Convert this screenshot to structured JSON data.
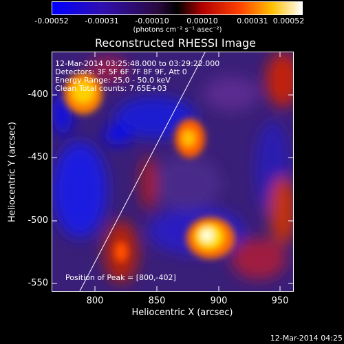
{
  "colorbar": {
    "ticks": [
      "-0.00052",
      "-0.00031",
      "-0.00010",
      "0.00010",
      "0.00031",
      "0.00052"
    ],
    "units": "(photons cm⁻² s⁻¹ asec⁻²)"
  },
  "title": "Reconstructed RHESSI Image",
  "annotations": {
    "time_range": "12-Mar-2014 03:25:48.000 to 03:29:22.000",
    "detectors": "Detectors: 3F 5F 6F 7F 8F 9F, Att 0",
    "energy_range": "Energy Range: 25.0 - 50.0 keV",
    "clean": "Clean    Total counts: 7.65E+03",
    "peak": "Position of Peak = [800,-402]"
  },
  "axes": {
    "xlabel": "Heliocentric X (arcsec)",
    "ylabel": "Heliocentric Y (arcsec)",
    "xticks": [
      "800",
      "850",
      "900",
      "950"
    ],
    "yticks": [
      "-400",
      "-450",
      "-500",
      "-550"
    ]
  },
  "footer_timestamp": "12-Mar-2014 04:25"
}
